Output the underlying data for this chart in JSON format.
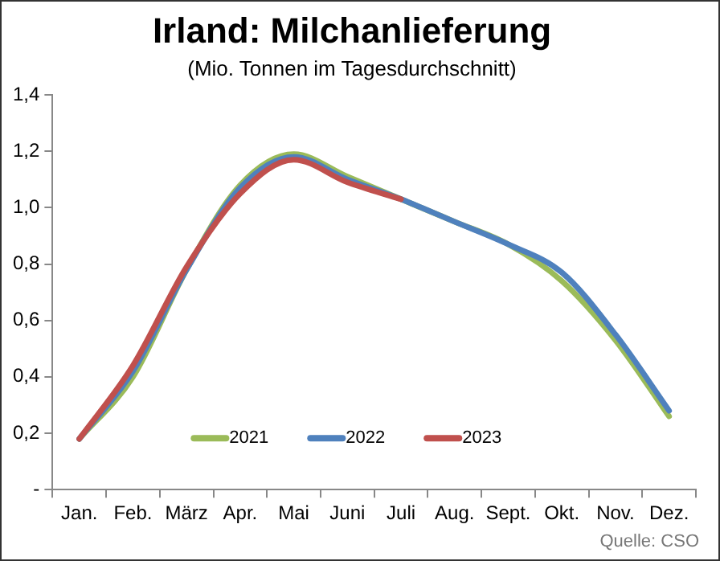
{
  "chart_data": {
    "type": "line",
    "title": "Irland: Milchanlieferung",
    "subtitle": "(Mio. Tonnen im Tagesdurchschnitt)",
    "categories": [
      "Jan.",
      "Feb.",
      "März",
      "Apr.",
      "Mai",
      "Juni",
      "Juli",
      "Aug.",
      "Sept.",
      "Okt.",
      "Nov.",
      "Dez."
    ],
    "series": [
      {
        "name": "2021",
        "color": "#9bbb59",
        "values": [
          0.18,
          0.4,
          0.78,
          1.08,
          1.19,
          1.11,
          1.03,
          0.95,
          0.87,
          0.74,
          0.53,
          0.26
        ]
      },
      {
        "name": "2022",
        "color": "#4f81bd",
        "values": [
          0.18,
          0.42,
          0.78,
          1.07,
          1.18,
          1.1,
          1.03,
          0.95,
          0.87,
          0.77,
          0.55,
          0.28
        ]
      },
      {
        "name": "2023",
        "color": "#c0504d",
        "values": [
          0.18,
          0.44,
          0.79,
          1.05,
          1.17,
          1.09,
          1.03,
          null,
          null,
          null,
          null,
          null
        ]
      }
    ],
    "ylim": [
      0,
      1.4
    ],
    "yticks": [
      {
        "value": 0,
        "label": "-"
      },
      {
        "value": 0.2,
        "label": "0,2"
      },
      {
        "value": 0.4,
        "label": "0,4"
      },
      {
        "value": 0.6,
        "label": "0,6"
      },
      {
        "value": 0.8,
        "label": "0,8"
      },
      {
        "value": 1.0,
        "label": "1,0"
      },
      {
        "value": 1.2,
        "label": "1,2"
      },
      {
        "value": 1.4,
        "label": "1,4"
      }
    ],
    "grid": false,
    "legend": "bottom",
    "marker": "none",
    "line_style": "solid",
    "annotations": [
      "Quelle: CSO"
    ]
  }
}
